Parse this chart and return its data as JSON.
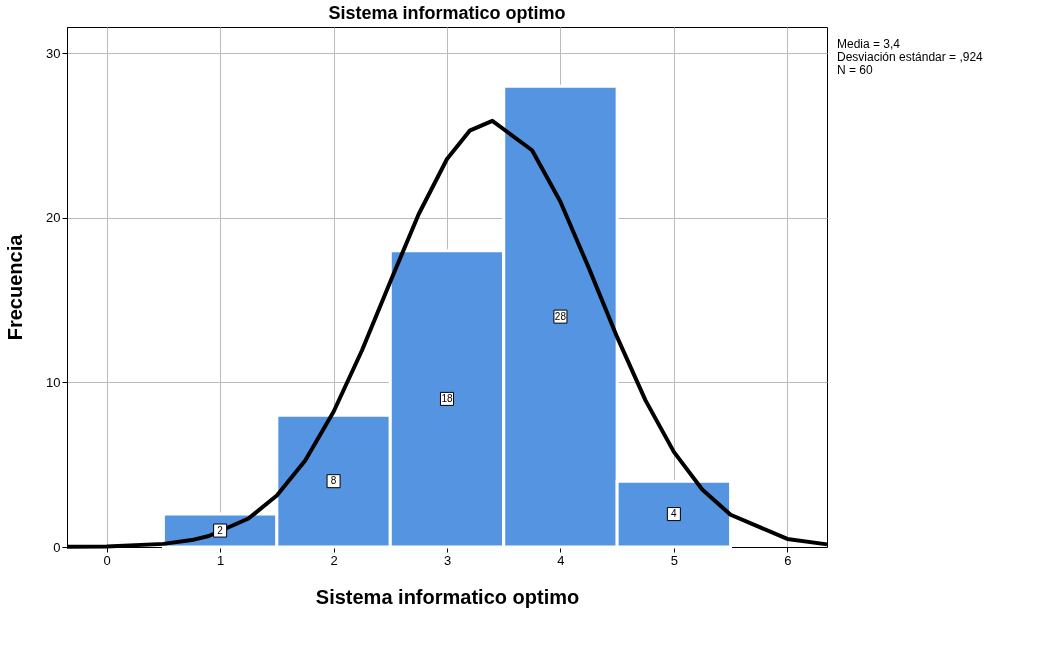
{
  "chart_data": {
    "type": "histogram",
    "title": "Sistema informatico optimo",
    "xlabel": "Sistema informatico optimo",
    "ylabel": "Frecuencia",
    "bins": [
      0.5,
      1.5,
      2.5,
      3.5,
      4.5,
      5.5
    ],
    "values": [
      2,
      8,
      18,
      28,
      4
    ],
    "color": "#5594e0",
    "value_labels": [
      "2",
      "8",
      "18",
      "28",
      "4"
    ],
    "series": [
      {
        "type": "line",
        "color": "#000000",
        "x": [
          -0.35,
          0,
          0.5,
          0.75,
          0.9,
          1.25,
          1.5,
          1.75,
          2,
          2.25,
          2.5,
          2.75,
          3,
          3.2,
          3.4,
          3.75,
          4,
          4.25,
          4.5,
          4.75,
          5,
          5.25,
          5.5,
          6,
          6.35
        ],
        "values": [
          0.01,
          0.03,
          0.19,
          0.42,
          0.67,
          1.73,
          3.13,
          5.26,
          8.22,
          11.94,
          16.12,
          20.22,
          23.58,
          25.3,
          25.9,
          24.11,
          20.98,
          16.96,
          12.75,
          8.91,
          5.78,
          3.49,
          1.96,
          0.49,
          0.16
        ]
      }
    ],
    "xlim": [
      -0.35,
      6.35
    ],
    "ylim": [
      0,
      31.6
    ],
    "xticks": [
      0,
      1,
      2,
      3,
      4,
      5,
      6
    ],
    "yticks": [
      0,
      10,
      20,
      30
    ],
    "grid": true,
    "marker": "none",
    "line_style": "solid",
    "annotations": [
      "Media = 3,4",
      "Desviación estándar = ,924",
      "N = 60"
    ]
  }
}
